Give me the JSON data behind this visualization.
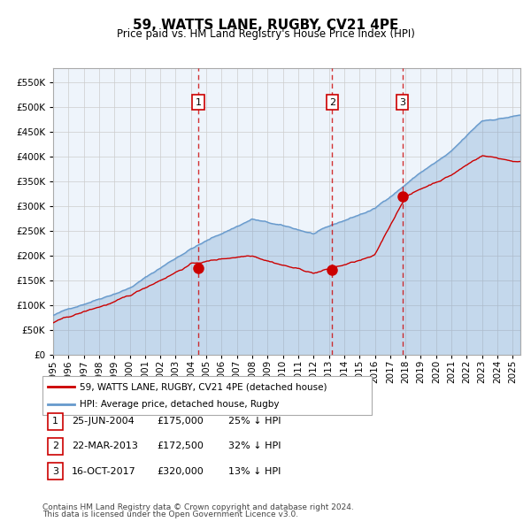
{
  "title": "59, WATTS LANE, RUGBY, CV21 4PE",
  "subtitle": "Price paid vs. HM Land Registry's House Price Index (HPI)",
  "legend_line1": "59, WATTS LANE, RUGBY, CV21 4PE (detached house)",
  "legend_line2": "HPI: Average price, detached house, Rugby",
  "hpi_color": "#6699cc",
  "hpi_fill_color": "#ddeeff",
  "price_color": "#cc0000",
  "sale_marker_color": "#cc0000",
  "vline_color": "#cc0000",
  "annotation_box_color": "#cc0000",
  "background_color": "#ffffff",
  "plot_bg_color": "#eef4fb",
  "grid_color": "#cccccc",
  "sales": [
    {
      "label": "1",
      "date_str": "25-JUN-2004",
      "date_num": 2004.48,
      "price": 175000
    },
    {
      "label": "2",
      "date_str": "22-MAR-2013",
      "date_num": 2013.22,
      "price": 172500
    },
    {
      "label": "3",
      "date_str": "16-OCT-2017",
      "date_num": 2017.79,
      "price": 320000
    }
  ],
  "footer_line1": "Contains HM Land Registry data © Crown copyright and database right 2024.",
  "footer_line2": "This data is licensed under the Open Government Licence v3.0.",
  "ylim": [
    0,
    580000
  ],
  "yticks": [
    0,
    50000,
    100000,
    150000,
    200000,
    250000,
    300000,
    350000,
    400000,
    450000,
    500000,
    550000
  ],
  "xstart": 1995.0,
  "xend": 2025.5,
  "sale_info": [
    {
      "label": "1",
      "date_str": "25-JUN-2004",
      "price_str": "£175,000",
      "hpi_str": "25% ↓ HPI"
    },
    {
      "label": "2",
      "date_str": "22-MAR-2013",
      "price_str": "£172,500",
      "hpi_str": "32% ↓ HPI"
    },
    {
      "label": "3",
      "date_str": "16-OCT-2017",
      "price_str": "£320,000",
      "hpi_str": "13% ↓ HPI"
    }
  ]
}
